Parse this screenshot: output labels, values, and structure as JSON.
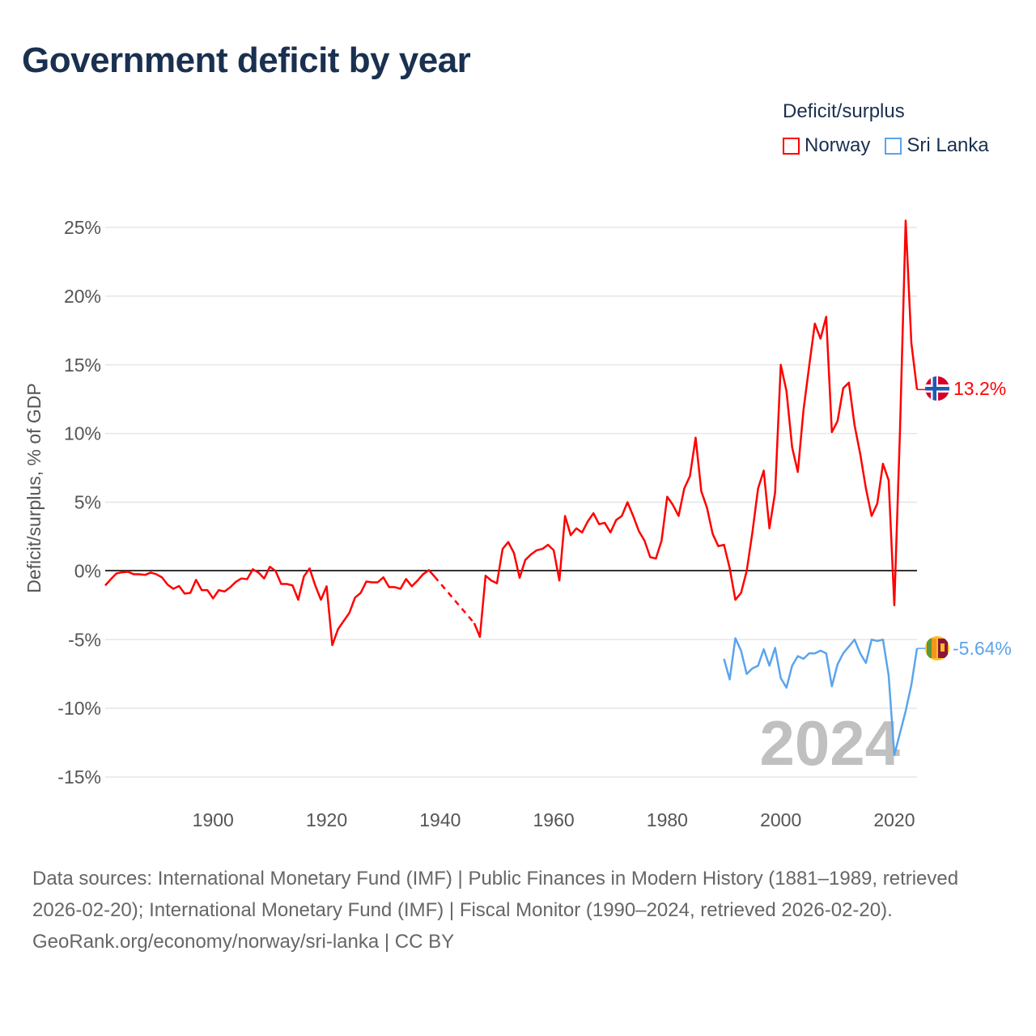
{
  "title": "Government deficit by year",
  "legend": {
    "title": "Deficit/surplus",
    "items": [
      {
        "name": "Norway",
        "color": "#ff0000"
      },
      {
        "name": "Sri Lanka",
        "color": "#5ba4ec"
      }
    ]
  },
  "chart_data": {
    "type": "line",
    "title": "Government deficit by year",
    "xlabel": "",
    "ylabel": "Deficit/surplus, % of GDP",
    "xlim": [
      1881,
      2024
    ],
    "ylim": [
      -15,
      25
    ],
    "xticks": [
      1900,
      1920,
      1940,
      1960,
      1980,
      2000,
      2020
    ],
    "xtick_labels": [
      "1900",
      "1920",
      "1940",
      "1960",
      "1980",
      "2000",
      "2020"
    ],
    "yticks": [
      25,
      20,
      15,
      10,
      5,
      0,
      -5,
      -10,
      -15
    ],
    "ytick_labels": [
      "25%",
      "20%",
      "15%",
      "10%",
      "5%",
      "0%",
      "-5%",
      "-10%",
      "-15%"
    ],
    "grid": true,
    "legend_position": "top-right",
    "year_watermark": "2024",
    "series": [
      {
        "name": "Norway",
        "color": "#ff0000",
        "end_label": "13.2%",
        "start_year": 1881,
        "values": [
          -1.06,
          -0.6,
          -0.18,
          -0.1,
          -0.06,
          -0.24,
          -0.24,
          -0.29,
          -0.12,
          -0.24,
          -0.47,
          -1.0,
          -1.3,
          -1.1,
          -1.65,
          -1.6,
          -0.65,
          -1.4,
          -1.4,
          -2.0,
          -1.4,
          -1.5,
          -1.2,
          -0.8,
          -0.55,
          -0.6,
          0.12,
          -0.12,
          -0.55,
          0.3,
          0.0,
          -0.95,
          -0.95,
          -1.06,
          -2.1,
          -0.4,
          0.18,
          -1.06,
          -2.1,
          -1.12,
          -5.4,
          -4.25,
          -3.65,
          -3.06,
          -1.95,
          -1.6,
          -0.77,
          -0.83,
          -0.83,
          -0.47,
          -1.18,
          -1.18,
          -1.3,
          -0.59,
          -1.12,
          -0.71,
          -0.24,
          0.06,
          -0.41,
          null,
          null,
          null,
          null,
          null,
          null,
          -3.8,
          -4.8,
          -0.35,
          -0.7,
          -0.9,
          1.6,
          2.1,
          1.3,
          -0.5,
          0.8,
          1.2,
          1.5,
          1.6,
          1.9,
          1.5,
          -0.7,
          4.0,
          2.6,
          3.1,
          2.8,
          3.6,
          4.2,
          3.4,
          3.5,
          2.8,
          3.7,
          4.0,
          5.0,
          4.0,
          2.9,
          2.2,
          1.0,
          0.9,
          2.2,
          5.4,
          4.8,
          4.0,
          6.0,
          6.9,
          9.7,
          5.8,
          4.6,
          2.7,
          1.8,
          1.9,
          0.2,
          -2.1,
          -1.6,
          0.0,
          2.8,
          6.0,
          7.3,
          3.1,
          5.7,
          15.0,
          13.1,
          9.0,
          7.2,
          11.7,
          14.9,
          18.0,
          16.9,
          18.5,
          10.1,
          10.9,
          13.3,
          13.7,
          10.6,
          8.5,
          6.0,
          4.0,
          4.9,
          7.8,
          6.6,
          -2.5,
          10.2,
          25.5,
          16.6,
          13.2
        ]
      },
      {
        "name": "Sri Lanka",
        "color": "#5ba4ec",
        "end_label": "-5.64%",
        "start_year": 1990,
        "values": [
          -6.4,
          -7.9,
          -4.9,
          -5.8,
          -7.5,
          -7.1,
          -6.9,
          -5.7,
          -6.9,
          -5.6,
          -7.8,
          -8.5,
          -6.9,
          -6.2,
          -6.4,
          -6.0,
          -6.0,
          -5.8,
          -6.0,
          -8.4,
          -6.8,
          -6.0,
          -5.5,
          -5.0,
          -6.0,
          -6.7,
          -5.0,
          -5.1,
          -5.0,
          -7.6,
          -13.4,
          -11.8,
          -10.2,
          -8.3,
          -5.64
        ]
      }
    ]
  },
  "footer": {
    "sources": "Data sources: International Monetary Fund (IMF) | Public Finances in Modern History (1881–1989, retrieved 2026-02-20); International Monetary Fund (IMF) | Fiscal Monitor (1990–2024, retrieved 2026-02-20).",
    "credit": "GeoRank.org/economy/norway/sri-lanka | CC BY"
  }
}
